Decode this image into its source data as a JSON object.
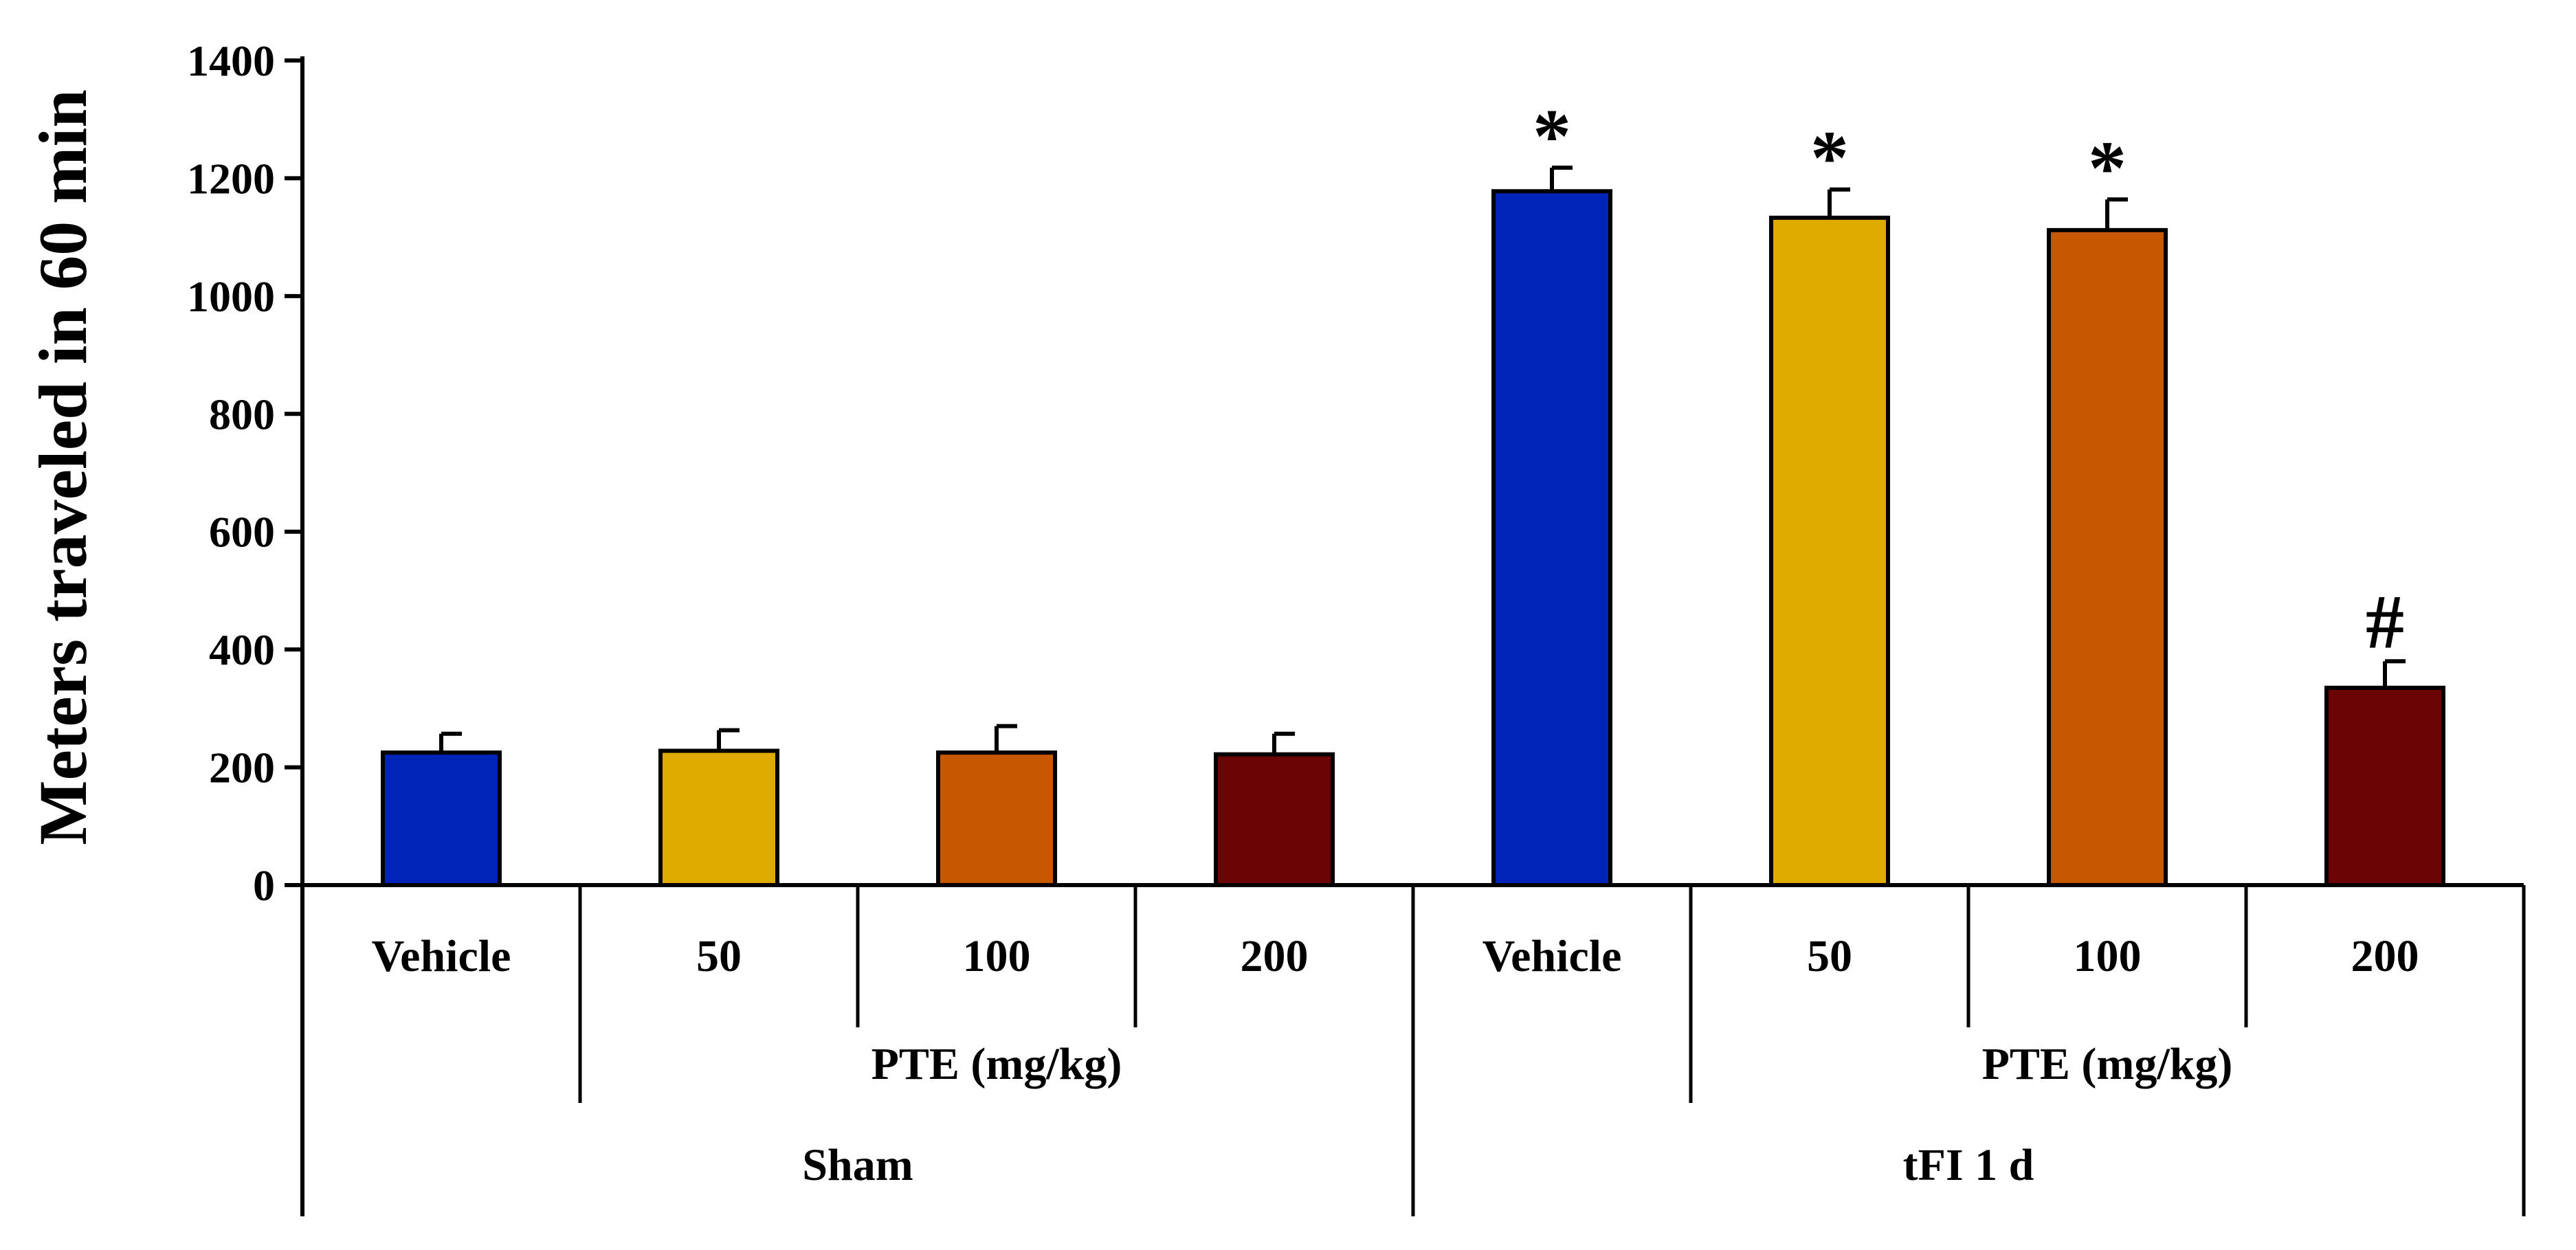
{
  "chart_data": {
    "type": "bar",
    "title": "",
    "xlabel": "",
    "ylabel": "Meters traveled in 60 min",
    "ylim": [
      0,
      1400
    ],
    "yticks": [
      0,
      200,
      400,
      600,
      800,
      1000,
      1200,
      1400
    ],
    "grid": false,
    "categories": [
      "Vehicle",
      "50",
      "100",
      "200",
      "Vehicle",
      "50",
      "100",
      "200"
    ],
    "values": [
      225,
      228,
      225,
      222,
      1178,
      1133,
      1112,
      335
    ],
    "errors": [
      32,
      35,
      45,
      35,
      40,
      48,
      52,
      45
    ],
    "colors": [
      "#0024b8",
      "#e0ab00",
      "#c85800",
      "#6b0404",
      "#0024b8",
      "#e0ab00",
      "#c85800",
      "#6b0404"
    ],
    "annotations": [
      "",
      "",
      "",
      "",
      "*",
      "*",
      "*",
      "#"
    ],
    "subgroups": [
      {
        "label": "PTE (mg/kg)",
        "start": 1,
        "end": 3
      },
      {
        "label": "PTE (mg/kg)",
        "start": 5,
        "end": 7
      }
    ],
    "groups": [
      {
        "label": "Sham",
        "start": 0,
        "end": 3
      },
      {
        "label": "tFI 1 d",
        "start": 4,
        "end": 7
      }
    ]
  }
}
